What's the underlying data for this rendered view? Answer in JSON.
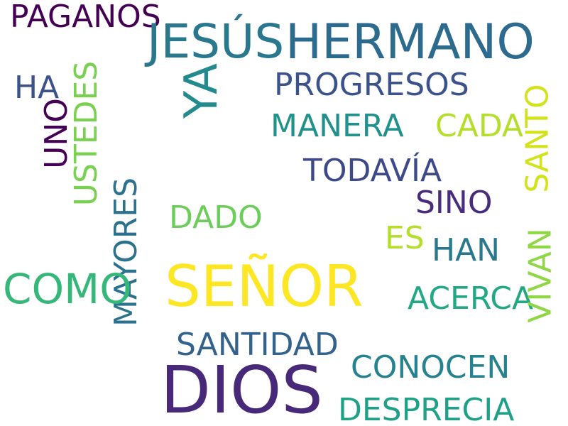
{
  "words": [
    {
      "text": "PAGANOS",
      "color": "#440154"
    },
    {
      "text": "JESÚS",
      "color": "#2a788e"
    },
    {
      "text": "HERMANO",
      "color": "#2c6a8e"
    },
    {
      "text": "YA",
      "color": "#238a8d"
    },
    {
      "text": "HA",
      "color": "#3b528b"
    },
    {
      "text": "USTEDES",
      "color": "#7ad151"
    },
    {
      "text": "UNO",
      "color": "#440154"
    },
    {
      "text": "PROGRESOS",
      "color": "#3b528b"
    },
    {
      "text": "MANERA",
      "color": "#21918c"
    },
    {
      "text": "CADA",
      "color": "#b5de2b"
    },
    {
      "text": "SANTO",
      "color": "#d2e21b"
    },
    {
      "text": "TODAVÍA",
      "color": "#3e4989"
    },
    {
      "text": "SINO",
      "color": "#472d7b"
    },
    {
      "text": "MAYORES",
      "color": "#2c728e"
    },
    {
      "text": "DADO",
      "color": "#6ccd5a"
    },
    {
      "text": "ES",
      "color": "#b5de2b"
    },
    {
      "text": "HAN",
      "color": "#2a788e"
    },
    {
      "text": "COMO",
      "color": "#35b779"
    },
    {
      "text": "SEÑOR",
      "color": "#fde725"
    },
    {
      "text": "ACERCA",
      "color": "#22a884"
    },
    {
      "text": "VIVAN",
      "color": "#8fd744"
    },
    {
      "text": "SANTIDAD",
      "color": "#33638d"
    },
    {
      "text": "CONOCEN",
      "color": "#26828e"
    },
    {
      "text": "DIOS",
      "color": "#482878"
    },
    {
      "text": "DESPRECIA",
      "color": "#1fa187"
    }
  ]
}
